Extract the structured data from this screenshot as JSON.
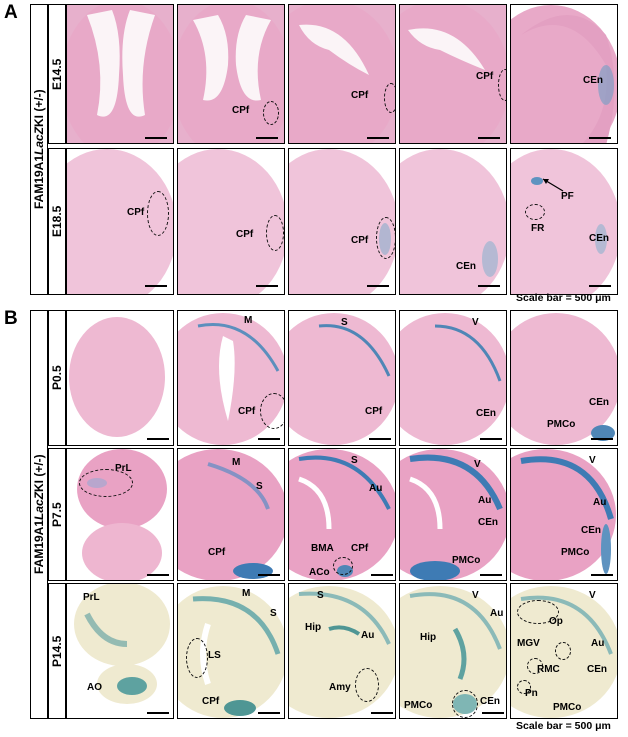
{
  "panelA": {
    "letter": "A",
    "genotype_prefix": "FAM19A1 ",
    "genotype_gene": "LacZ",
    "genotype_suffix": " KI (+/-)",
    "rows": [
      "E14.5",
      "E18.5"
    ],
    "scale": "Scale bar = 500 μm"
  },
  "panelB": {
    "letter": "B",
    "genotype_prefix": "FAM19A1 ",
    "genotype_gene": "LacZ",
    "genotype_suffix": " KI (+/-)",
    "rows": [
      "P0.5",
      "P7.5",
      "P14.5"
    ],
    "scale": "Scale bar = 500 μm"
  },
  "labels": {
    "CPf": "CPf",
    "CEn": "CEn",
    "PF": "PF",
    "FR": "FR",
    "M": "M",
    "S": "S",
    "V": "V",
    "PMCo": "PMCo",
    "PrL": "PrL",
    "Au": "Au",
    "BMA": "BMA",
    "ACo": "ACo",
    "Hip": "Hip",
    "LS": "LS",
    "AO": "AO",
    "Amy": "Amy",
    "Op": "Op",
    "MGV": "MGV",
    "RMC": "RMC",
    "Pn": "Pn"
  },
  "colors": {
    "stain_pink": "#e9a9c8",
    "stain_pale": "#f3d0e0",
    "lacz_blue": "#4a8ab8",
    "xgal_bg": "#efead0"
  }
}
